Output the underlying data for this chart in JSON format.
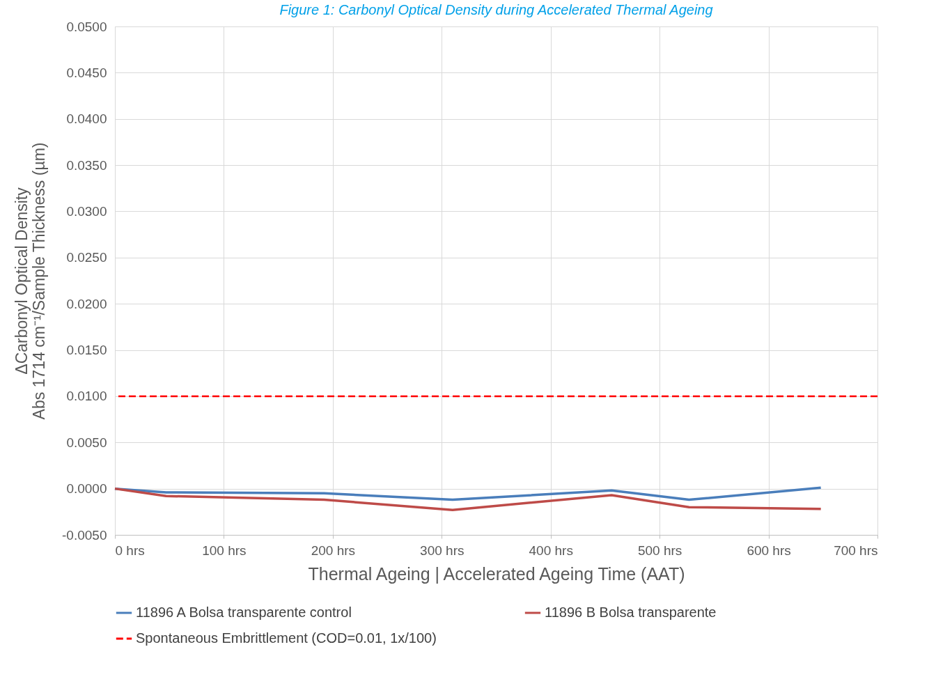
{
  "chart_data": {
    "type": "line",
    "title": "Figure 1: Carbonyl Optical Density during Accelerated Thermal Ageing",
    "xlabel": "Thermal Ageing | Accelerated Ageing Time (AAT)",
    "ylabel": "ΔCarbonyl Optical Density\nAbs 1714 cm⁻¹/Sample Thickness (µm)",
    "x": [
      0,
      47,
      192,
      310,
      456,
      527,
      648
    ],
    "series": [
      {
        "name": "11896 A Bolsa transparente control",
        "color": "#4a7ebb",
        "values": [
          0,
          -0.0004,
          -0.0005,
          -0.0012,
          -0.0002,
          -0.0012,
          0.0001
        ]
      },
      {
        "name": "11896 B Bolsa transparente",
        "color": "#be4b48",
        "values": [
          0,
          -0.0008,
          -0.0012,
          -0.0023,
          -0.0007,
          -0.002,
          -0.0022
        ]
      }
    ],
    "ref_lines": [
      {
        "axis": "y",
        "value": 0.01,
        "label": "Spontaneous Embrittlement (COD=0.01, 1x/100)",
        "color": "#ff0000",
        "line_style": "dashed"
      }
    ],
    "xlim": [
      0,
      700
    ],
    "xticks": [
      {
        "value": 0,
        "label": "0 hrs"
      },
      {
        "value": 100,
        "label": "100 hrs"
      },
      {
        "value": 200,
        "label": "200 hrs"
      },
      {
        "value": 300,
        "label": "300 hrs"
      },
      {
        "value": 400,
        "label": "400 hrs"
      },
      {
        "value": 500,
        "label": "500 hrs"
      },
      {
        "value": 600,
        "label": "600 hrs"
      },
      {
        "value": 700,
        "label": "700 hrs"
      }
    ],
    "ylim": [
      -0.005,
      0.05
    ],
    "yticks": [
      {
        "value": -0.005,
        "label": "-0.0050"
      },
      {
        "value": 0,
        "label": "0.0000"
      },
      {
        "value": 0.005,
        "label": "0.0050"
      },
      {
        "value": 0.01,
        "label": "0.0100"
      },
      {
        "value": 0.015,
        "label": "0.0150"
      },
      {
        "value": 0.02,
        "label": "0.0200"
      },
      {
        "value": 0.025,
        "label": "0.0250"
      },
      {
        "value": 0.03,
        "label": "0.0300"
      },
      {
        "value": 0.035,
        "label": "0.0350"
      },
      {
        "value": 0.04,
        "label": "0.0400"
      },
      {
        "value": 0.045,
        "label": "0.0450"
      },
      {
        "value": 0.05,
        "label": "0.0500"
      }
    ],
    "grid": true,
    "legend": "bottom",
    "marker": "none",
    "line_style": "solid"
  }
}
